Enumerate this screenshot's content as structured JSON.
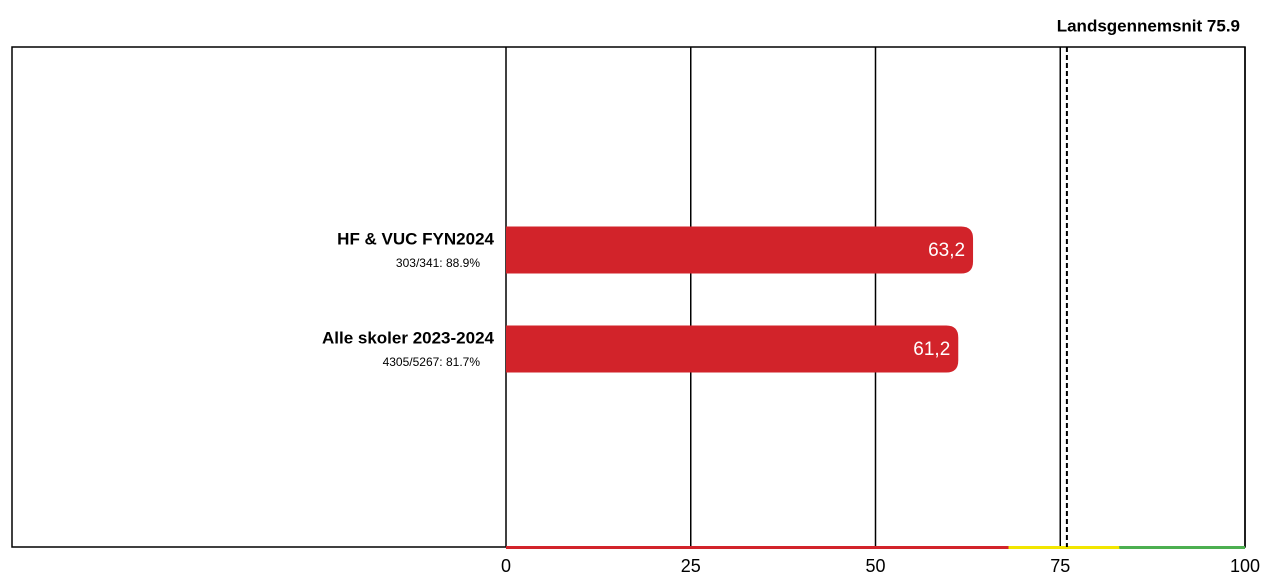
{
  "chart_data": {
    "type": "hbar",
    "categories": [
      "HF & VUC FYN2024",
      "Alle skoler 2023-2024"
    ],
    "sublabels": [
      "303/341: 88.9%",
      "4305/5267: 81.7%"
    ],
    "values": [
      63.2,
      61.2
    ],
    "value_labels": [
      "63,2",
      "61,2"
    ],
    "color": "#d2232a",
    "xlim": [
      0,
      100
    ],
    "xticks": [
      0,
      25,
      50,
      75,
      100
    ],
    "grid": true,
    "reference_line": {
      "value": 75.9,
      "label": "Landsgennemsnit 75.9"
    },
    "color_bands": [
      {
        "from": 0,
        "to": 68,
        "color": "#d2232a"
      },
      {
        "from": 68,
        "to": 83,
        "color": "#f2e600"
      },
      {
        "from": 83,
        "to": 100,
        "color": "#4caf50"
      }
    ]
  }
}
